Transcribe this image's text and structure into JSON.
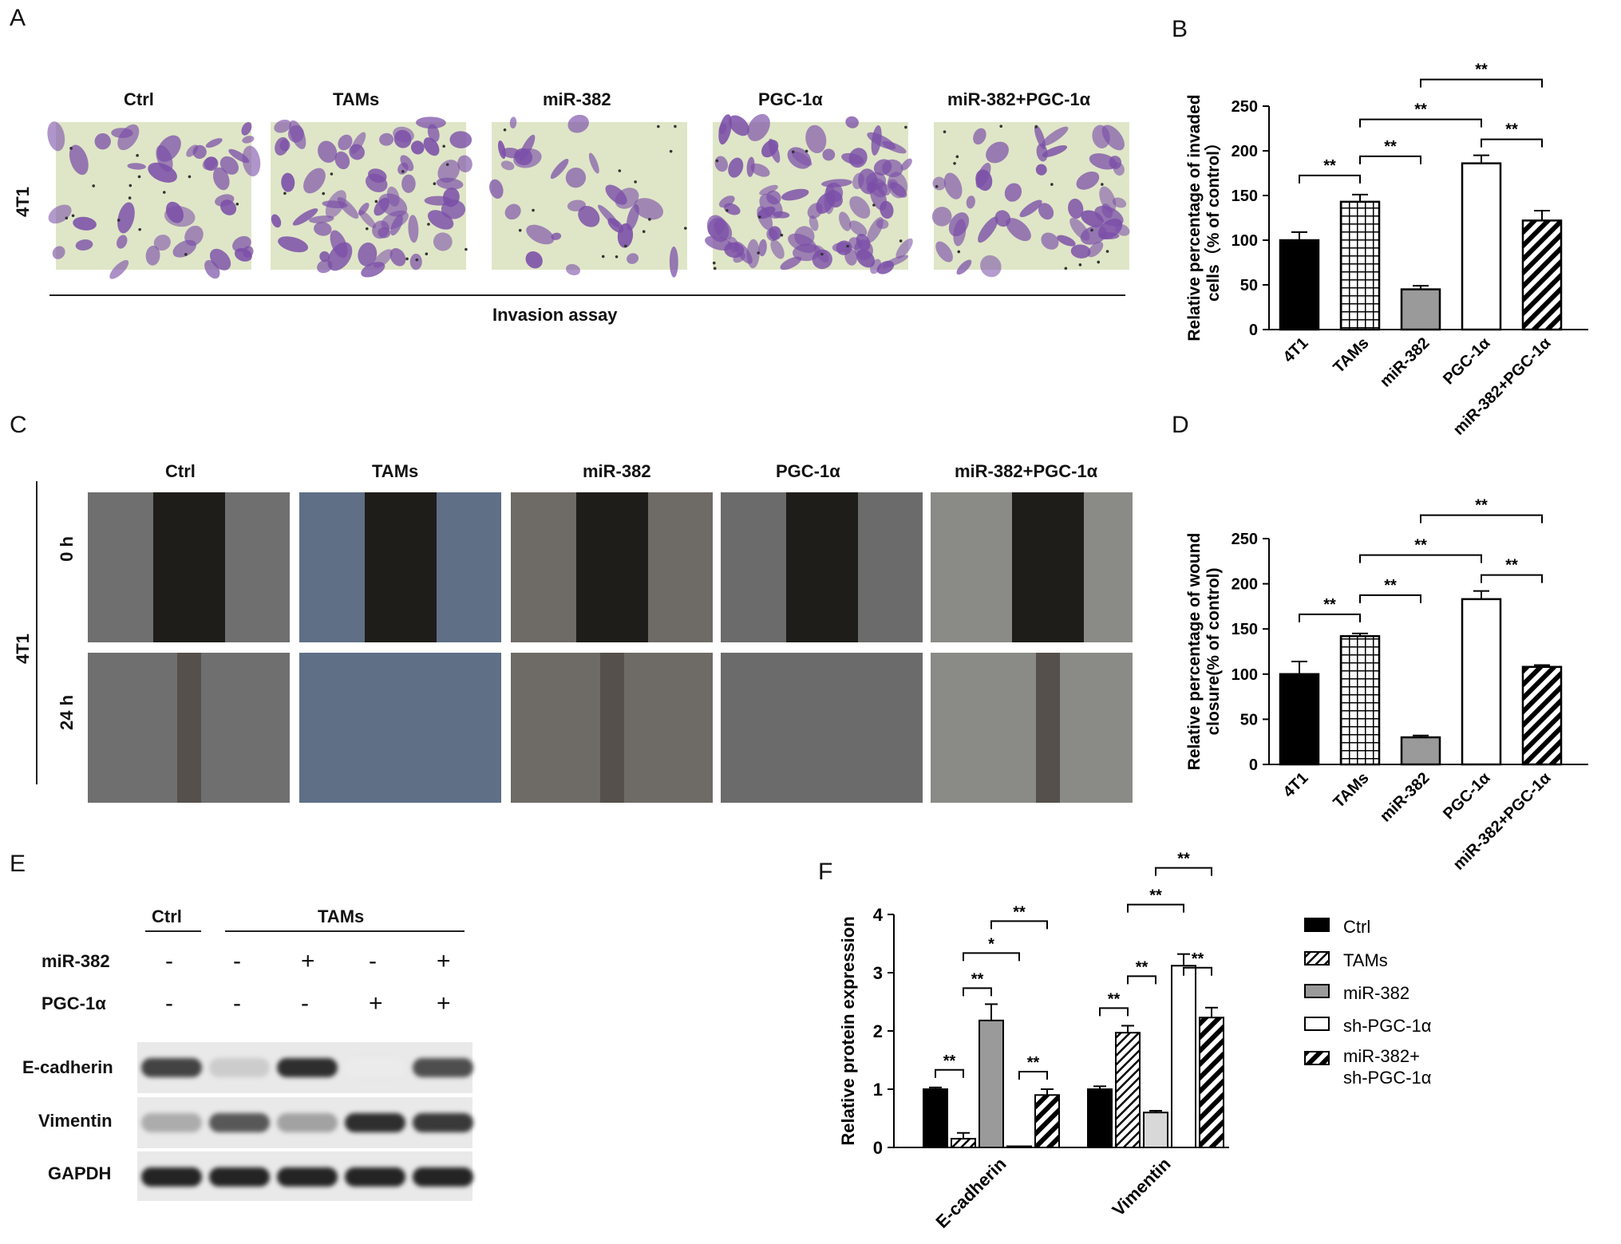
{
  "panels": {
    "A": {
      "letter": "A",
      "groups": [
        "Ctrl",
        "TAMs",
        "miR-382",
        "PGC-1α",
        "miR-382+PGC-1α"
      ],
      "row_label": "4T1",
      "caption": "Invasion assay"
    },
    "B": {
      "letter": "B"
    },
    "C": {
      "letter": "C",
      "groups": [
        "Ctrl",
        "TAMs",
        "miR-382",
        "PGC-1α",
        "miR-382+PGC-1α"
      ],
      "row_labels": [
        "0 h",
        "24 h"
      ],
      "cell_label": "4T1"
    },
    "D": {
      "letter": "D"
    },
    "E": {
      "letter": "E",
      "header_ctrl": "Ctrl",
      "header_tams": "TAMs",
      "rows": [
        {
          "label": "miR-382",
          "signs": [
            "-",
            "-",
            "+",
            "-",
            "+"
          ]
        },
        {
          "label": "PGC-1α",
          "signs": [
            "-",
            "-",
            "-",
            "+",
            "+"
          ]
        }
      ],
      "bands": [
        "E-cadherin",
        "Vimentin",
        "GAPDH"
      ],
      "band_intensity": {
        "E-cadherin": [
          0.8,
          0.15,
          0.9,
          0.0,
          0.75
        ],
        "Vimentin": [
          0.3,
          0.7,
          0.35,
          0.9,
          0.85
        ],
        "GAPDH": [
          0.95,
          0.95,
          0.95,
          0.95,
          0.95
        ]
      }
    },
    "F": {
      "letter": "F"
    }
  },
  "chart_data": [
    {
      "panel": "B",
      "type": "bar",
      "categories": [
        "4T1",
        "TAMs",
        "miR-382",
        "PGC-1α",
        "miR-382+PGC-1α"
      ],
      "values": [
        100,
        143,
        45,
        186,
        122
      ],
      "errors": [
        9,
        8,
        4,
        9,
        11
      ],
      "ylabel": "Relative percentage of invaded cells（% of control）",
      "ylim": [
        0,
        250
      ],
      "yticks": [
        0,
        50,
        100,
        150,
        200,
        250
      ],
      "significance": [
        "**",
        "**",
        "**",
        "**",
        "**"
      ]
    },
    {
      "panel": "D",
      "type": "bar",
      "categories": [
        "4T1",
        "TAMs",
        "miR-382",
        "PGC-1α",
        "miR-382+PGC-1α"
      ],
      "values": [
        100,
        142,
        30,
        183,
        108
      ],
      "errors": [
        14,
        3,
        2,
        9,
        2
      ],
      "ylabel": "Relative percentage of wound closure(% of control)",
      "ylim": [
        0,
        250
      ],
      "yticks": [
        0,
        50,
        100,
        150,
        200,
        250
      ],
      "significance": [
        "**",
        "**",
        "**",
        "**",
        "**"
      ]
    },
    {
      "panel": "F",
      "type": "bar",
      "categories": [
        "E-cadherin",
        "Vimentin"
      ],
      "series": [
        {
          "name": "Ctrl",
          "values": [
            1.0,
            1.0
          ],
          "errors": [
            0.03,
            0.05
          ]
        },
        {
          "name": "TAMs",
          "values": [
            0.15,
            1.97
          ],
          "errors": [
            0.1,
            0.12
          ]
        },
        {
          "name": "miR-382",
          "values": [
            2.18,
            0.6
          ],
          "errors": [
            0.28,
            0.03
          ]
        },
        {
          "name": "sh-PGC-1α",
          "values": [
            0.02,
            3.12
          ],
          "errors": [
            0.0,
            0.2
          ]
        },
        {
          "name": "miR-382+ sh-PGC-1α",
          "values": [
            0.9,
            2.23
          ],
          "errors": [
            0.1,
            0.17
          ]
        }
      ],
      "legend_labels": [
        "Ctrl",
        "TAMs",
        "miR-382",
        "sh-PGC-1α",
        "miR-382+",
        "sh-PGC-1α"
      ],
      "ylabel": "Relative protein expression",
      "ylim": [
        0,
        4
      ],
      "yticks": [
        0,
        1,
        2,
        3,
        4
      ],
      "legend": "right",
      "significance": [
        "**",
        "**",
        "*",
        "**",
        "**",
        "**",
        "**",
        "**",
        "**",
        "**"
      ]
    }
  ],
  "colors": {
    "black": "#000000",
    "gray": "#9a9a9a",
    "light_gray": "#d8d8d8",
    "stain": "#7b4fa8",
    "bg": "#ffffff"
  }
}
